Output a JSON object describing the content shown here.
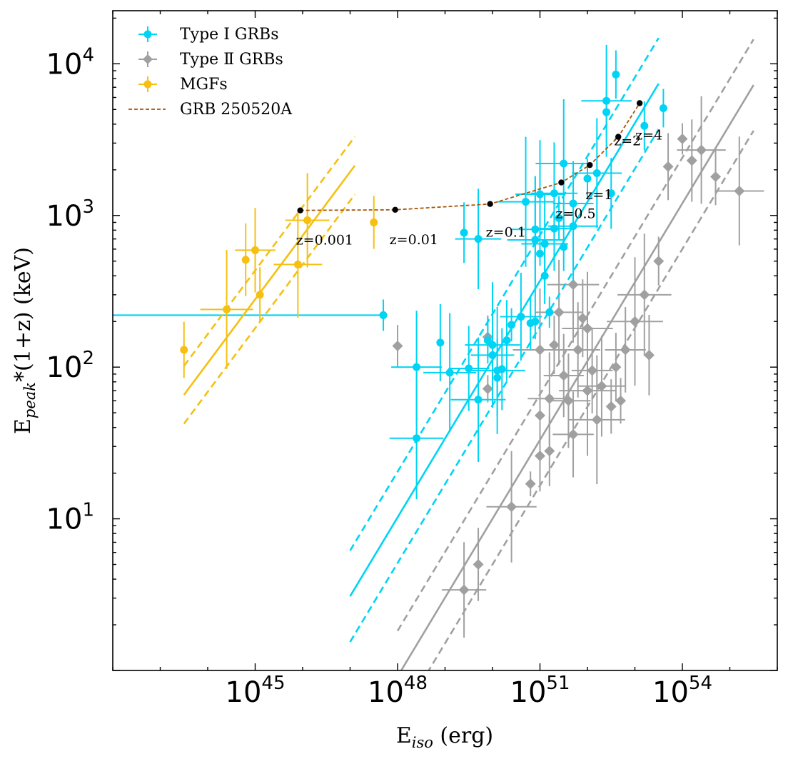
{
  "chart_data": {
    "type": "scatter",
    "title": "",
    "xlabel": {
      "main": "E",
      "sub": "iso",
      "rest": " (erg)"
    },
    "ylabel": {
      "main": "E",
      "sub": "peak",
      "rest": "*(1+z) (keV)"
    },
    "x_scale": "log",
    "y_scale": "log",
    "xlim_log10": [
      42.0,
      56.0
    ],
    "ylim_log10": [
      0.0,
      4.35
    ],
    "x_ticks": [
      {
        "base": "10",
        "exp": "45",
        "log": 45
      },
      {
        "base": "10",
        "exp": "48",
        "log": 48
      },
      {
        "base": "10",
        "exp": "51",
        "log": 51
      },
      {
        "base": "10",
        "exp": "54",
        "log": 54
      }
    ],
    "y_ticks": [
      {
        "base": "10",
        "exp": "1",
        "log": 1
      },
      {
        "base": "10",
        "exp": "2",
        "log": 2
      },
      {
        "base": "10",
        "exp": "3",
        "log": 3
      },
      {
        "base": "10",
        "exp": "4",
        "log": 4
      }
    ],
    "grid": false,
    "legend_position": "top-left",
    "colors": {
      "type1": "#00d4f5",
      "type2": "#a0a0a0",
      "mgf": "#f5c010",
      "track": "#a65508"
    },
    "legend": [
      {
        "label": "Type I GRBs",
        "color": "#00d4f5",
        "marker": "circle"
      },
      {
        "label": "Type Ⅱ GRBs",
        "color": "#a0a0a0",
        "marker": "diamond"
      },
      {
        "label": "MGFs",
        "color": "#f5c010",
        "marker": "circle"
      },
      {
        "label": "GRB 250520A",
        "color": "#a65508",
        "marker": "dashed-line"
      }
    ],
    "series": [
      {
        "name": "MGFs",
        "marker": "circle",
        "color": "#f5c010",
        "points": [
          [
            43.5,
            130
          ],
          [
            44.4,
            240
          ],
          [
            44.8,
            510
          ],
          [
            45.0,
            590
          ],
          [
            45.1,
            300
          ],
          [
            45.9,
            475
          ],
          [
            46.1,
            930
          ],
          [
            47.5,
            900
          ]
        ],
        "fit": {
          "x_range": [
            43.5,
            47.1
          ],
          "slope": 0.42,
          "intercept_at_x45": 280,
          "band_factor": 1.55
        }
      },
      {
        "name": "Type I GRBs",
        "marker": "circle",
        "color": "#00d4f5",
        "points": [
          [
            47.7,
            220
          ],
          [
            48.4,
            34
          ],
          [
            48.4,
            100
          ],
          [
            48.9,
            145
          ],
          [
            49.1,
            92
          ],
          [
            49.4,
            770
          ],
          [
            49.5,
            98
          ],
          [
            49.7,
            700
          ],
          [
            49.7,
            61
          ],
          [
            49.9,
            150
          ],
          [
            50.0,
            120
          ],
          [
            50.0,
            140
          ],
          [
            50.1,
            95
          ],
          [
            50.1,
            85
          ],
          [
            50.2,
            97
          ],
          [
            50.3,
            150
          ],
          [
            50.4,
            190
          ],
          [
            50.6,
            215
          ],
          [
            50.7,
            1230
          ],
          [
            50.8,
            195
          ],
          [
            50.9,
            810
          ],
          [
            50.9,
            690
          ],
          [
            50.9,
            200
          ],
          [
            51.0,
            560
          ],
          [
            51.1,
            650
          ],
          [
            51.1,
            400
          ],
          [
            51.0,
            1380
          ],
          [
            51.2,
            230
          ],
          [
            51.3,
            1400
          ],
          [
            51.3,
            820
          ],
          [
            51.4,
            960
          ],
          [
            51.5,
            620
          ],
          [
            51.5,
            2200
          ],
          [
            51.7,
            1200
          ],
          [
            51.7,
            850
          ],
          [
            52.0,
            1750
          ],
          [
            52.2,
            1900
          ],
          [
            52.4,
            5700
          ],
          [
            52.4,
            4800
          ],
          [
            52.5,
            1400
          ],
          [
            52.6,
            8500
          ],
          [
            53.2,
            3900
          ],
          [
            53.6,
            5100
          ]
        ],
        "fit": {
          "x_range": [
            47.0,
            53.5
          ],
          "slope": 0.52,
          "intercept_at_x50": 112,
          "band_factor": 2.0
        },
        "horizontal_segment": {
          "y": 220,
          "x_range": [
            42.0,
            47.7
          ]
        }
      },
      {
        "name": "Type Ⅱ GRBs",
        "marker": "diamond",
        "color": "#a0a0a0",
        "points": [
          [
            48.0,
            138
          ],
          [
            49.4,
            3.4
          ],
          [
            49.7,
            5.0
          ],
          [
            49.9,
            72
          ],
          [
            49.9,
            158
          ],
          [
            50.4,
            12
          ],
          [
            50.8,
            17
          ],
          [
            51.0,
            48
          ],
          [
            51.0,
            26
          ],
          [
            51.0,
            130
          ],
          [
            51.2,
            28
          ],
          [
            51.2,
            62
          ],
          [
            51.3,
            140
          ],
          [
            51.4,
            230
          ],
          [
            51.5,
            88
          ],
          [
            51.6,
            60
          ],
          [
            51.7,
            36
          ],
          [
            51.7,
            350
          ],
          [
            51.8,
            130
          ],
          [
            51.9,
            210
          ],
          [
            52.0,
            70
          ],
          [
            52.0,
            180
          ],
          [
            52.1,
            95
          ],
          [
            52.2,
            45
          ],
          [
            52.3,
            75
          ],
          [
            52.5,
            55
          ],
          [
            52.6,
            100
          ],
          [
            52.7,
            60
          ],
          [
            52.8,
            130
          ],
          [
            53.0,
            200
          ],
          [
            53.2,
            300
          ],
          [
            53.3,
            120
          ],
          [
            53.5,
            500
          ],
          [
            53.7,
            2100
          ],
          [
            54.0,
            3200
          ],
          [
            54.2,
            2300
          ],
          [
            54.4,
            2700
          ],
          [
            54.7,
            1800
          ],
          [
            55.2,
            1450
          ]
        ],
        "fit": {
          "x_range": [
            48.0,
            55.5
          ],
          "slope": 0.52,
          "intercept_at_x50": 10,
          "band_factor": 2.0
        }
      }
    ],
    "track": {
      "name": "GRB 250520A",
      "color": "#a65508",
      "points": [
        {
          "x": 45.95,
          "y": 1080,
          "z": "z=0.001"
        },
        {
          "x": 47.95,
          "y": 1090,
          "z": "z=0.01"
        },
        {
          "x": 49.95,
          "y": 1190,
          "z": "z=0.1"
        },
        {
          "x": 51.45,
          "y": 1650,
          "z": "z=0.5"
        },
        {
          "x": 52.05,
          "y": 2150,
          "z": "z=1"
        },
        {
          "x": 52.65,
          "y": 3300,
          "z": "z=2"
        },
        {
          "x": 53.1,
          "y": 5500,
          "z": "z=4"
        }
      ]
    }
  }
}
